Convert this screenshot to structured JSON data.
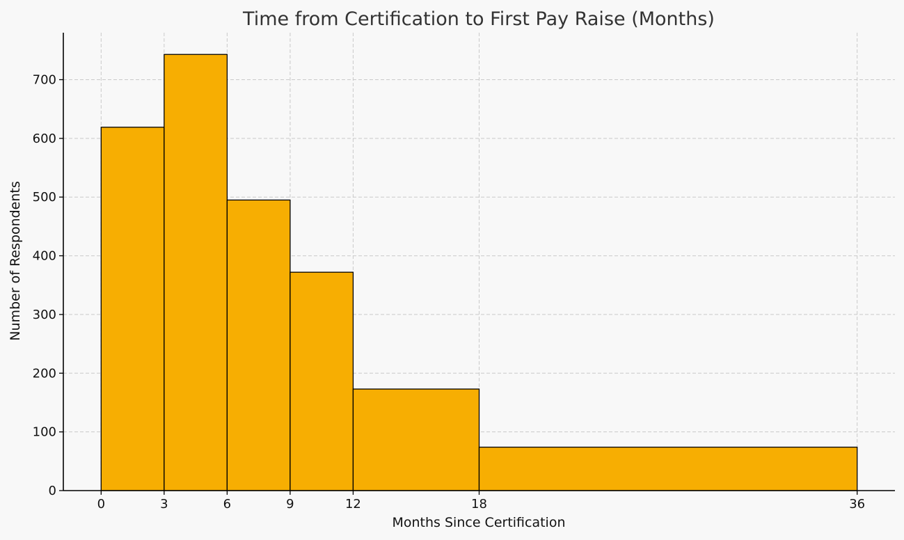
{
  "chart_data": {
    "type": "bar",
    "subtype": "histogram",
    "title": "Time from Certification to First Pay Raise (Months)",
    "xlabel": "Months Since Certification",
    "ylabel": "Number of Respondents",
    "bin_edges": [
      0,
      3,
      6,
      9,
      12,
      18,
      36
    ],
    "values": [
      619,
      743,
      495,
      372,
      173,
      74
    ],
    "xticks": [
      0,
      3,
      6,
      9,
      12,
      18,
      36
    ],
    "xtick_labels": [
      "0",
      "3",
      "6",
      "9",
      "12",
      "18",
      "36"
    ],
    "yticks": [
      0,
      100,
      200,
      300,
      400,
      500,
      600,
      700
    ],
    "ytick_labels": [
      "0",
      "100",
      "200",
      "300",
      "400",
      "500",
      "600",
      "700"
    ],
    "xlim": [
      -1.8,
      37.8
    ],
    "ylim": [
      0,
      780
    ],
    "grid": true,
    "legend": false,
    "bar_color": "#f7ae02",
    "edge_color": "#000000",
    "background": "#f8f8f8"
  }
}
